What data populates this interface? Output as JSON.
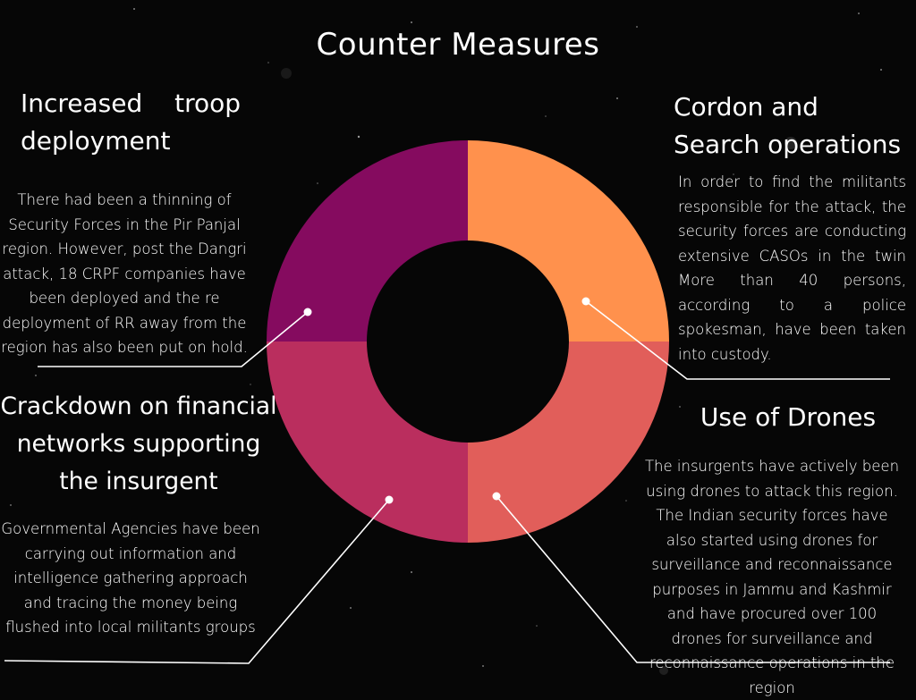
{
  "title": "Counter Measures",
  "colors": {
    "background": "#060606",
    "segment_top_right": "#FF914D",
    "segment_bottom_right": "#E15E5A",
    "segment_bottom_left": "#BA2E5E",
    "segment_top_left": "#850B5F",
    "connector": "#ffffff"
  },
  "sections": [
    {
      "id": "troops",
      "heading": "Increased troop deployment",
      "text": "There had been a thinning of Security Forces in the Pir Panjal region. However, post the Dangri attack, 18 CRPF companies have been deployed and the re deployment of RR away from the region has also been put on hold."
    },
    {
      "id": "cordon",
      "heading": "Cordon and Search operations",
      "text": "In order to find the militants responsible for the attack, the security forces are conducting extensive CASOs in the twin More than 40 persons, according to a police spokesman, have been taken into custody."
    },
    {
      "id": "finance",
      "heading": "Crackdown on financial networks supporting the insurgent",
      "text": "Governmental Agencies have been carrying out information and intelligence gathering approach and tracing the money being flushed into local militants groups"
    },
    {
      "id": "drones",
      "heading": "Use of Drones",
      "text": "The insurgents have actively been using drones to attack this region. The Indian security forces have also started using drones for surveillance and reconnaissance purposes in Jammu and Kashmir and have procured over 100 drones for surveillance and reconnaissance operations in the region"
    }
  ]
}
